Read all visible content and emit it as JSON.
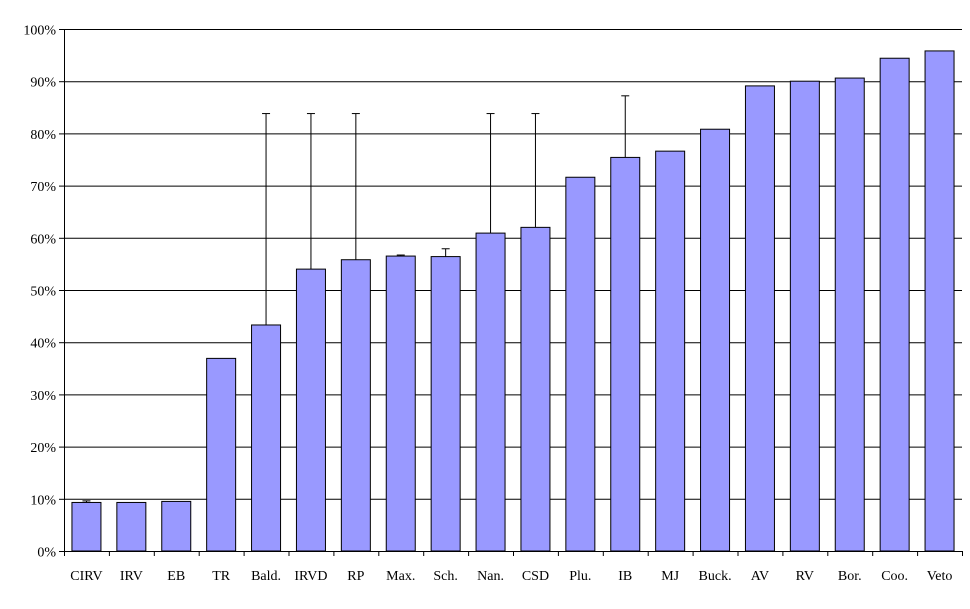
{
  "chart_data": {
    "type": "bar",
    "title": "",
    "xlabel": "",
    "ylabel": "",
    "ylim": [
      0,
      100
    ],
    "ytick_values": [
      0,
      10,
      20,
      30,
      40,
      50,
      60,
      70,
      80,
      90,
      100
    ],
    "ytick_labels": [
      "0%",
      "10%",
      "20%",
      "30%",
      "40%",
      "50%",
      "60%",
      "70%",
      "80%",
      "90%",
      "100%"
    ],
    "grid": "horizontal",
    "legend": "none",
    "categories": [
      "CIRV",
      "IRV",
      "EB",
      "TR",
      "Bald.",
      "IRVD",
      "RP",
      "Max.",
      "Sch.",
      "Nan.",
      "CSD",
      "Plu.",
      "IB",
      "MJ",
      "Buck.",
      "AV",
      "RV",
      "Bor.",
      "Coo.",
      "Veto"
    ],
    "values": [
      9.3,
      9.3,
      9.5,
      36.9,
      43.3,
      54.0,
      55.8,
      56.5,
      56.4,
      60.9,
      62.0,
      71.6,
      75.4,
      76.6,
      80.8,
      89.1,
      90.0,
      90.6,
      94.4,
      95.8
    ],
    "error_upper": [
      9.6,
      null,
      null,
      null,
      83.8,
      83.8,
      83.8,
      56.7,
      57.9,
      83.8,
      83.8,
      null,
      87.2,
      null,
      null,
      null,
      null,
      null,
      null,
      null
    ],
    "colors": {
      "bar_fill": "#9999ff",
      "bar_stroke": "#000000",
      "gridline": "#000000",
      "error_bar": "#000000"
    }
  }
}
